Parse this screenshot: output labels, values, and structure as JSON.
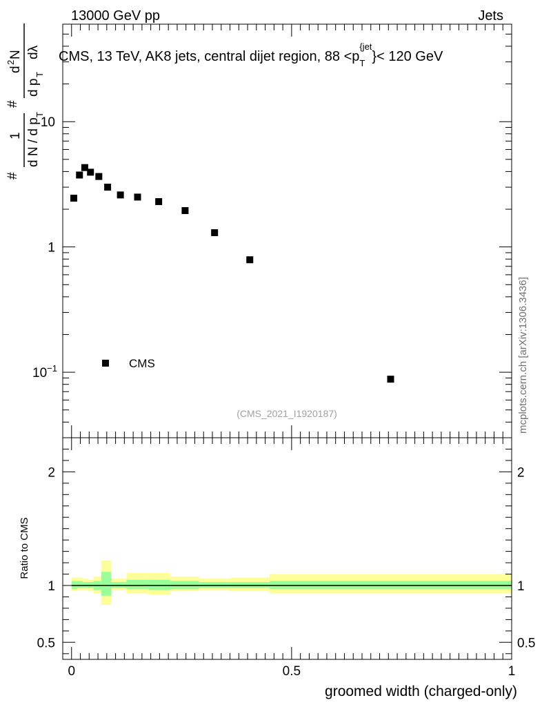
{
  "header": {
    "energy_label": "13000 GeV pp",
    "category_label": "Jets"
  },
  "side_label": "mcplots.cern.ch [arXiv:1306.3436]",
  "analysis_id": "(CMS_2021_I1920187)",
  "colors": {
    "band_outer": "#ffff99",
    "band_inner": "#99ff99",
    "marker": "#000000"
  },
  "chart_data": [
    {
      "type": "scatter",
      "panel": "main",
      "title": "CMS, 13 TeV, AK8 jets, central dijet region, 88 <p_T^{jet}< 120 GeV",
      "title_parts": {
        "prefix": "CMS, 13 TeV, AK8 jets, central dijet region, 88 <p",
        "sub": "T",
        "sup": "{jet",
        "suffix": "}< 120 GeV"
      },
      "ylabel": "1/(dN/dp_T) d²N/(dp_T dλ)",
      "ylabel_parts": {
        "hash": "#",
        "one": "1",
        "den": "d N / d p",
        "sub_t": "T",
        "num_a": "d",
        "num_sup": "2",
        "num_b": "N",
        "den2": "d p",
        "lambda": "dλ"
      },
      "yscale": "log",
      "ylim": [
        0.03,
        60
      ],
      "xlim": [
        -0.02,
        1.0
      ],
      "yticks": [
        0.1,
        1,
        10
      ],
      "ytick_labels": [
        {
          "base": "10",
          "exp": "−1"
        },
        {
          "base": "1",
          "exp": ""
        },
        {
          "base": "10",
          "exp": ""
        }
      ],
      "legend": {
        "label": "CMS",
        "position": "lower-left"
      },
      "series": [
        {
          "name": "CMS",
          "x": [
            0.005,
            0.018,
            0.03,
            0.043,
            0.062,
            0.082,
            0.111,
            0.15,
            0.198,
            0.258,
            0.325,
            0.405,
            0.725
          ],
          "y": [
            2.45,
            3.75,
            4.3,
            3.95,
            3.65,
            3.0,
            2.6,
            2.5,
            2.3,
            1.95,
            1.3,
            0.79,
            0.088
          ]
        }
      ]
    },
    {
      "type": "area",
      "panel": "ratio",
      "ylabel": "Ratio to CMS",
      "xlabel": "groomed width (charged-only)",
      "ylim": [
        0.35,
        2.3
      ],
      "xlim": [
        -0.02,
        1.0
      ],
      "yticks": [
        0.5,
        1,
        2
      ],
      "ytick_labels": [
        "0.5",
        "1",
        "2"
      ],
      "xticks": [
        0,
        0.5,
        1
      ],
      "xtick_labels": [
        "0",
        "0.5",
        "1"
      ],
      "reference_line": 1,
      "bins": [
        {
          "x0": 0.0,
          "x1": 0.0125,
          "outer": [
            0.95,
            1.07
          ],
          "inner": [
            0.97,
            1.04
          ]
        },
        {
          "x0": 0.0125,
          "x1": 0.025,
          "outer": [
            0.96,
            1.07
          ],
          "inner": [
            0.98,
            1.04
          ]
        },
        {
          "x0": 0.025,
          "x1": 0.0375,
          "outer": [
            0.96,
            1.06
          ],
          "inner": [
            0.98,
            1.03
          ]
        },
        {
          "x0": 0.0375,
          "x1": 0.05,
          "outer": [
            0.95,
            1.05
          ],
          "inner": [
            0.98,
            1.03
          ]
        },
        {
          "x0": 0.05,
          "x1": 0.0675,
          "outer": [
            0.93,
            1.08
          ],
          "inner": [
            0.96,
            1.04
          ]
        },
        {
          "x0": 0.0675,
          "x1": 0.09,
          "outer": [
            0.83,
            1.22
          ],
          "inner": [
            0.91,
            1.12
          ]
        },
        {
          "x0": 0.09,
          "x1": 0.125,
          "outer": [
            0.96,
            1.06
          ],
          "inner": [
            0.98,
            1.03
          ]
        },
        {
          "x0": 0.125,
          "x1": 0.175,
          "outer": [
            0.93,
            1.11
          ],
          "inner": [
            0.97,
            1.05
          ]
        },
        {
          "x0": 0.175,
          "x1": 0.225,
          "outer": [
            0.92,
            1.11
          ],
          "inner": [
            0.96,
            1.05
          ]
        },
        {
          "x0": 0.225,
          "x1": 0.29,
          "outer": [
            0.95,
            1.08
          ],
          "inner": [
            0.97,
            1.04
          ]
        },
        {
          "x0": 0.29,
          "x1": 0.36,
          "outer": [
            0.96,
            1.06
          ],
          "inner": [
            0.98,
            1.03
          ]
        },
        {
          "x0": 0.36,
          "x1": 0.45,
          "outer": [
            0.95,
            1.07
          ],
          "inner": [
            0.98,
            1.03
          ]
        },
        {
          "x0": 0.45,
          "x1": 1.0,
          "outer": [
            0.93,
            1.1
          ],
          "inner": [
            0.97,
            1.04
          ]
        }
      ]
    }
  ]
}
